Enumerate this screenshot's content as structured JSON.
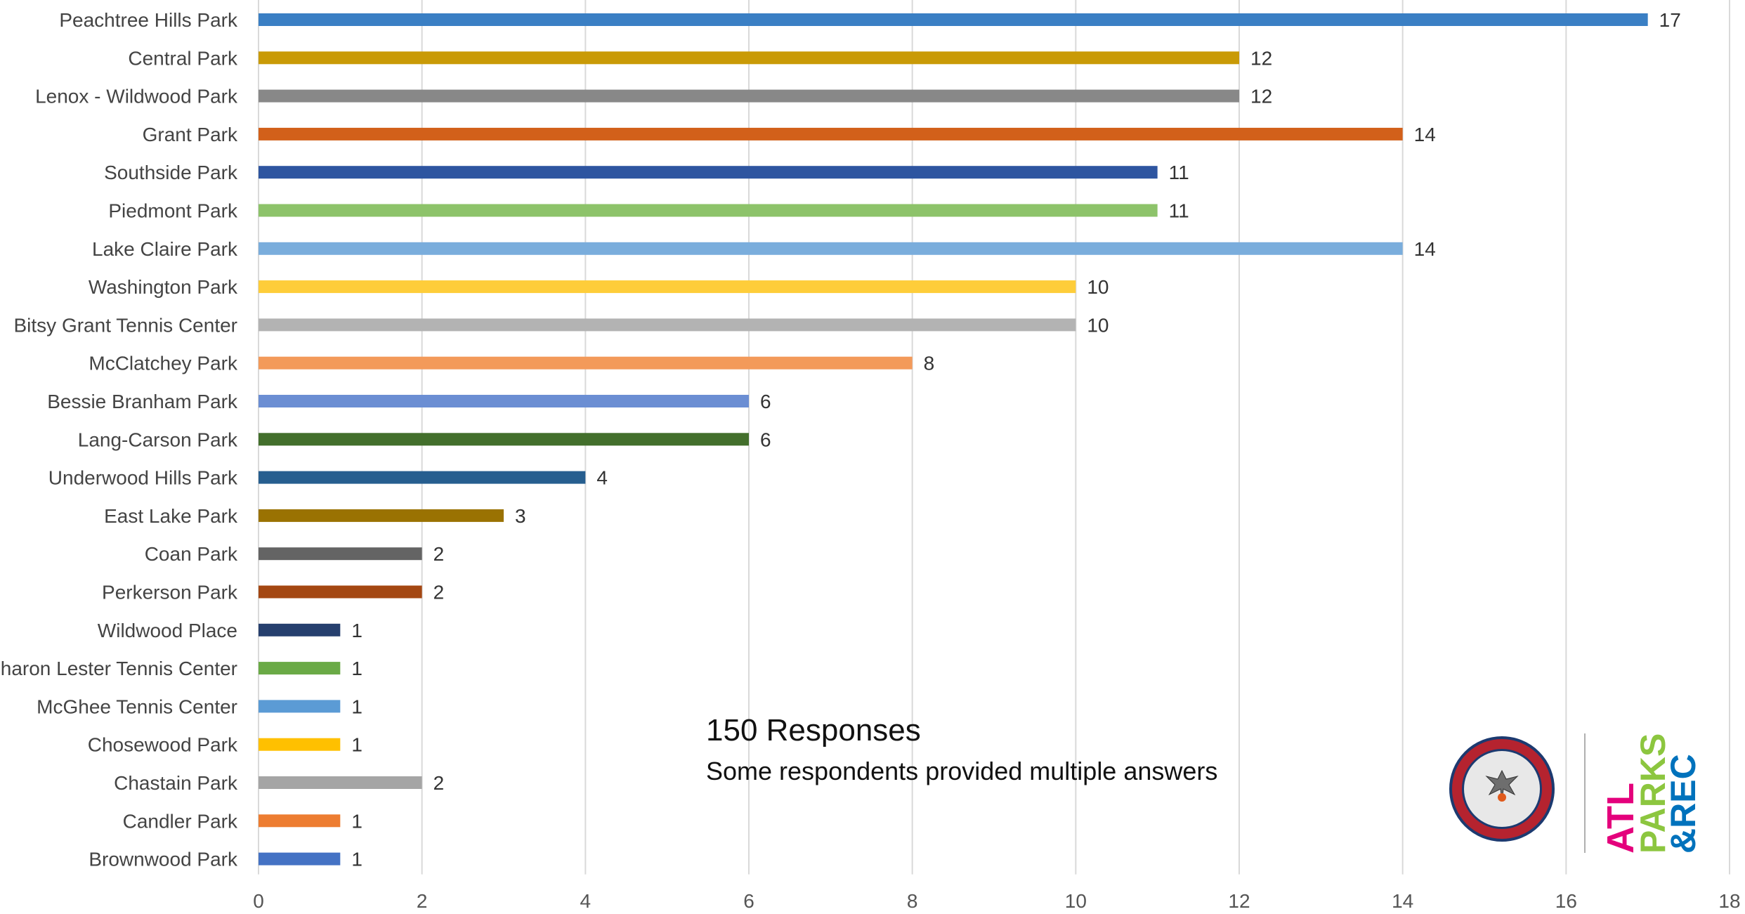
{
  "chart_data": {
    "type": "bar",
    "orientation": "horizontal",
    "categories": [
      "Peachtree Hills Park",
      "Central Park",
      "Lenox - Wildwood Park",
      "Grant Park",
      "Southside Park",
      "Piedmont Park",
      "Lake Claire Park",
      "Washington Park",
      "Bitsy Grant Tennis Center",
      "McClatchey Park",
      "Bessie Branham Park",
      "Lang-Carson Park",
      "Underwood Hills Park",
      "East Lake Park",
      "Coan Park",
      "Perkerson Park",
      "Wildwood Place",
      "Sharon Lester Tennis Center",
      "McGhee Tennis Center",
      "Chosewood Park",
      "Chastain Park",
      "Candler Park",
      "Brownwood Park"
    ],
    "values": [
      17,
      12,
      12,
      14,
      11,
      11,
      14,
      10,
      10,
      8,
      6,
      6,
      4,
      3,
      2,
      2,
      1,
      1,
      1,
      1,
      2,
      1,
      1
    ],
    "colors": [
      "#3a7fc4",
      "#c99a06",
      "#888888",
      "#d2601a",
      "#2e55a0",
      "#8dc36a",
      "#7aaddc",
      "#fecd3a",
      "#b3b3b3",
      "#f39a5a",
      "#6b8ed3",
      "#436f2c",
      "#265e8f",
      "#9a7202",
      "#646464",
      "#a44712",
      "#263f6e",
      "#6aaa46",
      "#5b9bd5",
      "#ffc000",
      "#a5a5a5",
      "#ed7d31",
      "#4472c4"
    ],
    "xlim": [
      0,
      18
    ],
    "xticks": [
      "0",
      "2",
      "4",
      "6",
      "8",
      "10",
      "12",
      "14",
      "16",
      "18"
    ],
    "grid": "vertical",
    "data_labels": true,
    "title": "",
    "xlabel": "",
    "ylabel": ""
  },
  "annotation": {
    "title": "150 Responses",
    "subtitle": "Some respondents provided multiple answers"
  },
  "logos": {
    "seal_text": "RESURGENS ATLANTA, GA. 1847 1865",
    "atl_text": "ATL",
    "parks_text": "PARKS",
    "rec_text": "&REC",
    "colors": {
      "atl": "#e4007c",
      "parks": "#8cc63f",
      "rec": "#0072bc"
    }
  }
}
